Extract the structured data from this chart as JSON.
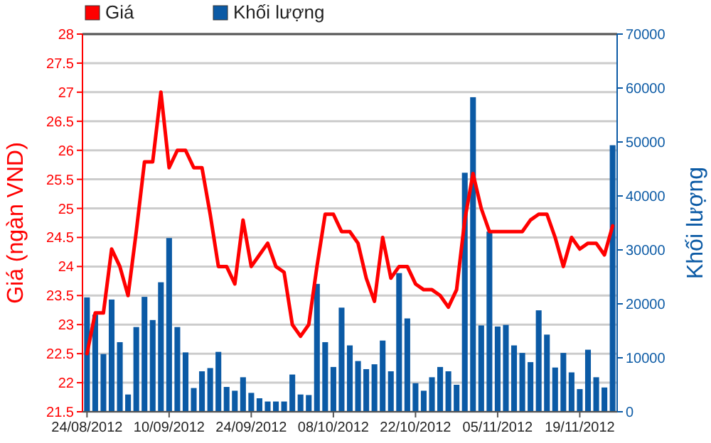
{
  "chart_data": {
    "type": "bar",
    "categories": [
      "24/08/2012",
      null,
      null,
      null,
      null,
      null,
      null,
      null,
      null,
      null,
      "10/09/2012",
      null,
      null,
      null,
      null,
      null,
      null,
      null,
      null,
      null,
      "24/09/2012",
      null,
      null,
      null,
      null,
      null,
      null,
      null,
      null,
      null,
      "08/10/2012",
      null,
      null,
      null,
      null,
      null,
      null,
      null,
      null,
      null,
      "22/10/2012",
      null,
      null,
      null,
      null,
      null,
      null,
      null,
      null,
      null,
      "05/11/2012",
      null,
      null,
      null,
      null,
      null,
      null,
      null,
      null,
      null,
      "19/11/2012",
      null,
      null,
      null,
      null
    ],
    "series": [
      {
        "name": "Khối lượng",
        "axis": "y2",
        "color": "#0b5aa5",
        "values": [
          21200,
          18000,
          10700,
          20800,
          12900,
          3200,
          15700,
          21300,
          17000,
          24000,
          32200,
          15700,
          11000,
          4400,
          7500,
          8100,
          11100,
          4600,
          3900,
          6400,
          3500,
          2500,
          1900,
          1900,
          1900,
          6900,
          3200,
          3100,
          23700,
          12900,
          8300,
          19300,
          12300,
          9400,
          7900,
          8800,
          13200,
          7500,
          25700,
          17300,
          5300,
          3900,
          6400,
          8300,
          7500,
          5000,
          44300,
          58300,
          16000,
          33400,
          15800,
          16100,
          12300,
          10900,
          9200,
          18800,
          14300,
          8200,
          10900,
          7300,
          4200,
          11500,
          6400,
          4500,
          49400
        ]
      },
      {
        "name": "Giá",
        "type": "line",
        "color": "#ff0000",
        "values": [
          22.5,
          23.2,
          23.2,
          24.3,
          24.0,
          23.5,
          24.6,
          25.8,
          25.8,
          27.0,
          25.7,
          26.0,
          26.0,
          25.7,
          25.7,
          24.9,
          24.0,
          24.0,
          23.7,
          24.8,
          24.0,
          24.2,
          24.4,
          24.0,
          23.9,
          23.0,
          22.8,
          23.0,
          24.0,
          24.9,
          24.9,
          24.6,
          24.6,
          24.4,
          23.8,
          23.4,
          24.5,
          23.8,
          24.0,
          24.0,
          23.7,
          23.6,
          23.6,
          23.5,
          23.3,
          23.6,
          24.8,
          25.6,
          25.0,
          24.6,
          24.6,
          24.6,
          24.6,
          24.6,
          24.8,
          24.9,
          24.9,
          24.5,
          24.0,
          24.5,
          24.3,
          24.4,
          24.4,
          24.2,
          24.7
        ]
      }
    ],
    "ylabel": "Giá (ngàn VND)",
    "y2label": "Khối lượng",
    "ylim": [
      21.5,
      28
    ],
    "yticks": [
      21.5,
      22,
      22.5,
      23,
      23.5,
      24,
      24.5,
      25,
      25.5,
      26,
      26.5,
      27,
      27.5,
      28
    ],
    "y2lim": [
      0,
      70000
    ],
    "y2ticks": [
      0,
      10000,
      20000,
      30000,
      40000,
      50000,
      60000,
      70000
    ],
    "grid": "y",
    "legend": "top left"
  }
}
